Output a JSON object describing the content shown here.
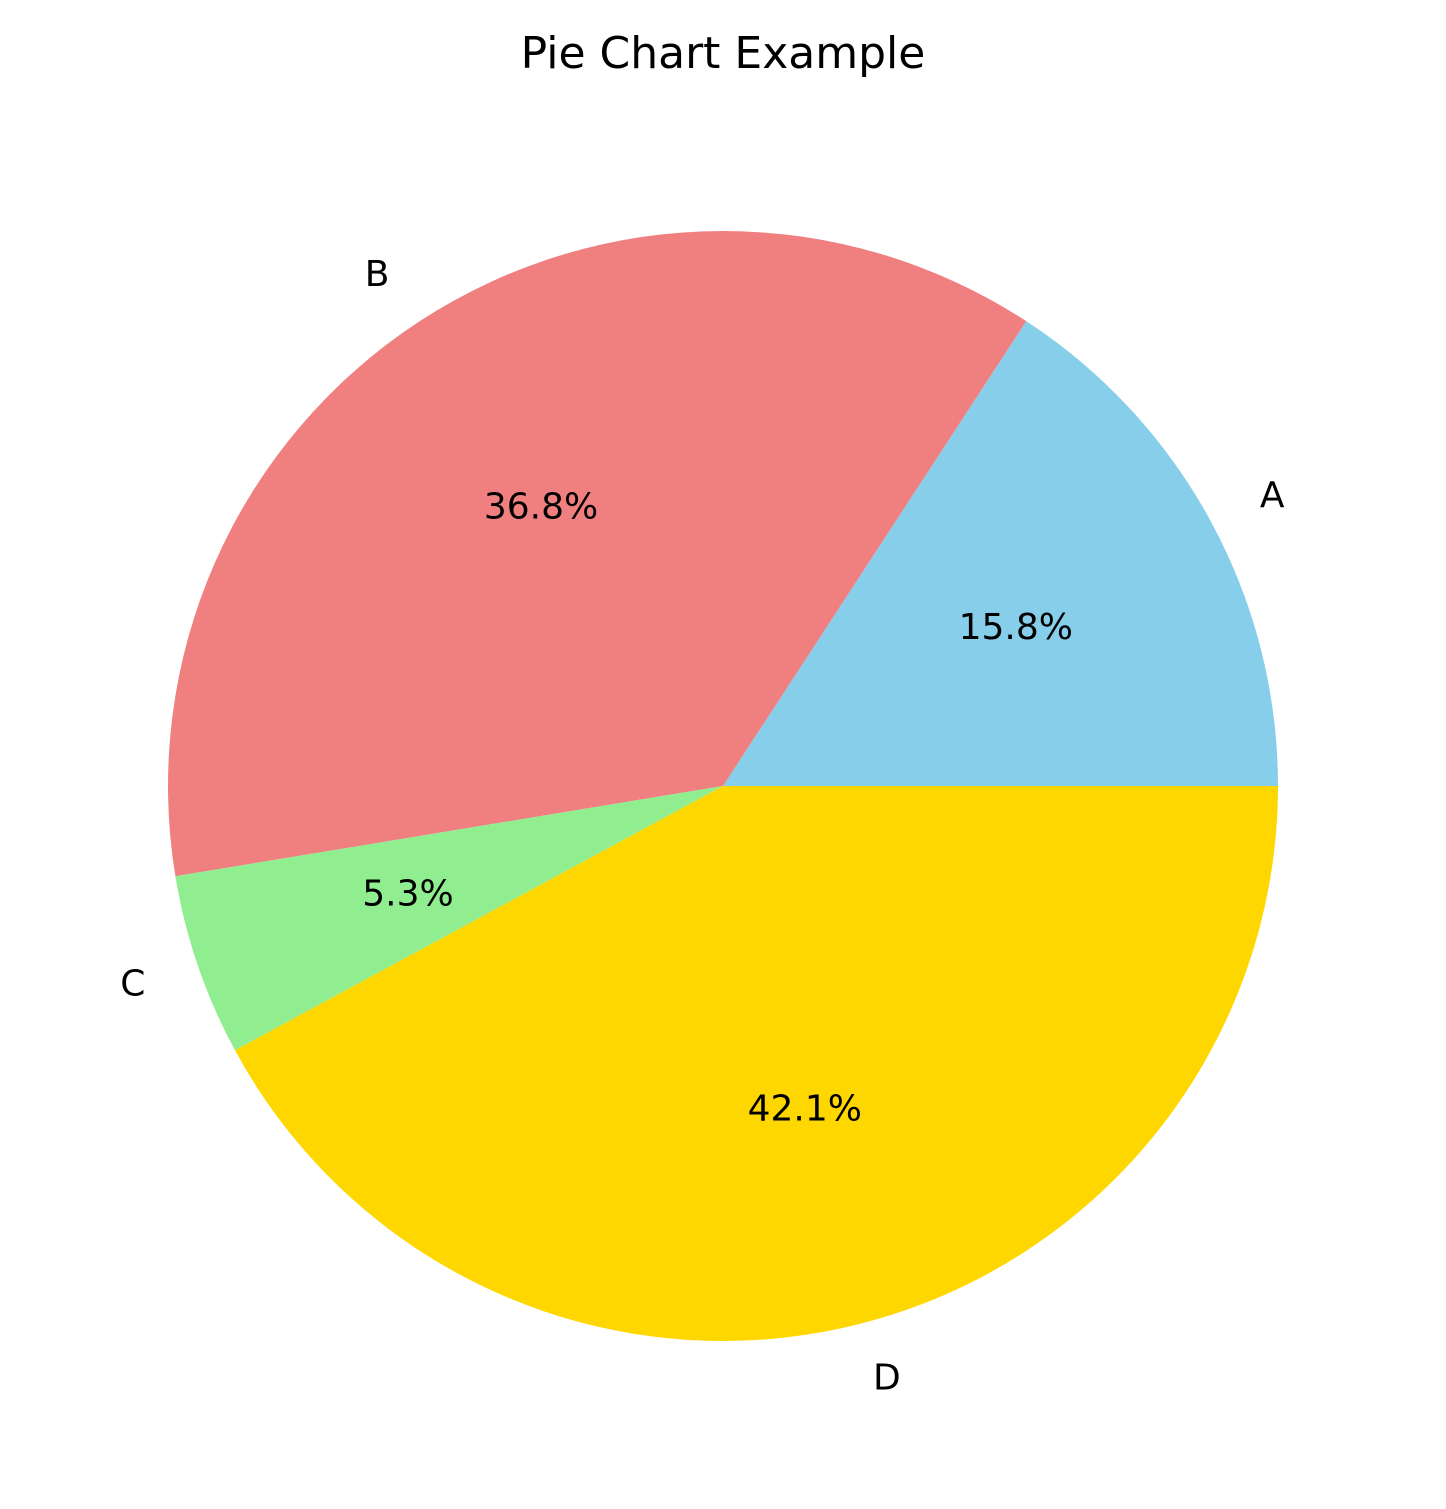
{
  "chart_data": {
    "type": "pie",
    "title": "Pie Chart Example",
    "categories": [
      "A",
      "B",
      "C",
      "D"
    ],
    "values": [
      15.8,
      36.8,
      5.3,
      42.1
    ],
    "percent_labels": [
      "15.8%",
      "36.8%",
      "5.3%",
      "42.1%"
    ],
    "colors": [
      "#87ceeb",
      "#f08080",
      "#90ee90",
      "#ffd700"
    ],
    "start_angle_deg": 0,
    "direction": "counterclockwise"
  }
}
